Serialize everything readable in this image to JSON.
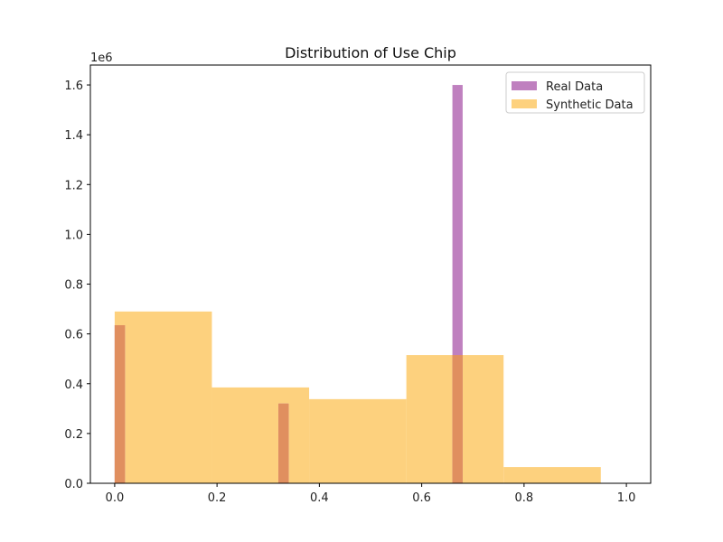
{
  "chart_data": {
    "type": "histogram",
    "title": "Distribution of Use Chip",
    "xlabel": "",
    "ylabel": "",
    "y_offset_label": "1e6",
    "xlim": [
      -0.0475,
      1.0475
    ],
    "ylim": [
      0,
      1680000
    ],
    "x_ticks": [
      0.0,
      0.2,
      0.4,
      0.6,
      0.8,
      1.0
    ],
    "x_tick_labels": [
      "0.0",
      "0.2",
      "0.4",
      "0.6",
      "0.8",
      "1.0"
    ],
    "y_ticks": [
      0,
      200000,
      400000,
      600000,
      800000,
      1000000,
      1200000,
      1400000,
      1600000
    ],
    "y_tick_labels": [
      "0.0",
      "0.2",
      "0.4",
      "0.6",
      "0.8",
      "1.0",
      "1.2",
      "1.4",
      "1.6"
    ],
    "legend_position": "top-right",
    "series": [
      {
        "name": "Real Data",
        "color": "#bf80bf",
        "bins": [
          {
            "x0": 0.0,
            "x1": 0.02,
            "value": 635000
          },
          {
            "x0": 0.32,
            "x1": 0.34,
            "value": 320000
          },
          {
            "x0": 0.66,
            "x1": 0.68,
            "value": 1600000
          }
        ]
      },
      {
        "name": "Synthetic Data",
        "color": "#fdd17e",
        "bins": [
          {
            "x0": 0.0,
            "x1": 0.19,
            "value": 690000
          },
          {
            "x0": 0.19,
            "x1": 0.38,
            "value": 385000
          },
          {
            "x0": 0.38,
            "x1": 0.57,
            "value": 338000
          },
          {
            "x0": 0.57,
            "x1": 0.76,
            "value": 515000
          },
          {
            "x0": 0.76,
            "x1": 0.95,
            "value": 65000
          }
        ]
      }
    ],
    "overlap_color": "#e08f5f"
  }
}
